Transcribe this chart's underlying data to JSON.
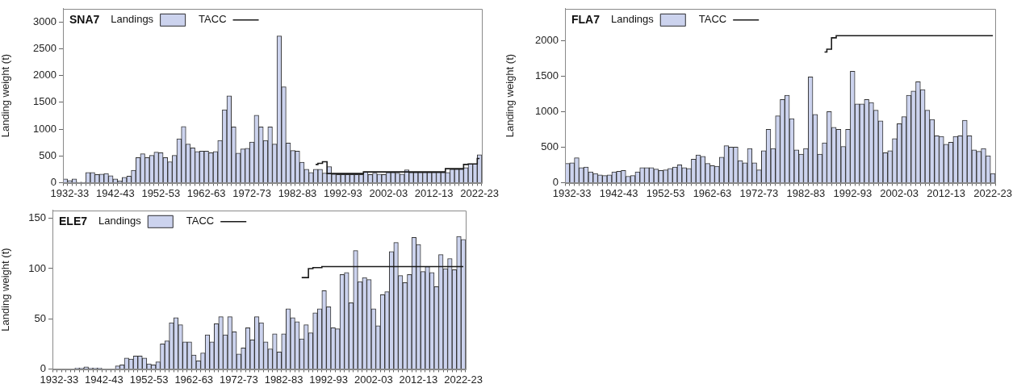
{
  "chart_data": [
    {
      "type": "bar",
      "title": "SNA7",
      "ylabel": "Landing weight (t)",
      "legend": "top left",
      "categories": [
        null,
        "1932-33",
        null,
        null,
        null,
        null,
        null,
        null,
        null,
        null,
        null,
        "1942-43",
        null,
        null,
        null,
        null,
        null,
        null,
        null,
        null,
        null,
        "1952-53",
        null,
        null,
        null,
        null,
        null,
        null,
        null,
        null,
        null,
        "1962-63",
        null,
        null,
        null,
        null,
        null,
        null,
        null,
        null,
        null,
        "1972-73",
        null,
        null,
        null,
        null,
        null,
        null,
        null,
        null,
        null,
        "1982-83",
        null,
        null,
        null,
        null,
        null,
        null,
        null,
        null,
        null,
        "1992-93",
        null,
        null,
        null,
        null,
        null,
        null,
        null,
        null,
        null,
        "2002-03",
        null,
        null,
        null,
        null,
        null,
        null,
        null,
        null,
        null,
        "2012-13",
        null,
        null,
        null,
        null,
        null,
        null,
        null,
        null,
        null,
        "2022-23"
      ],
      "ylim": [
        0,
        3250
      ],
      "yticks": [
        0,
        500,
        1000,
        1500,
        2000,
        2500,
        3000
      ],
      "series": [
        {
          "name": "Landings",
          "color": "#ccd3ee",
          "values": [
            70,
            40,
            70,
            10,
            10,
            190,
            190,
            150,
            160,
            170,
            130,
            70,
            30,
            100,
            120,
            230,
            470,
            540,
            470,
            510,
            570,
            560,
            470,
            390,
            510,
            820,
            1050,
            720,
            650,
            580,
            590,
            590,
            560,
            580,
            790,
            1360,
            1620,
            1040,
            550,
            630,
            640,
            760,
            1260,
            1040,
            790,
            1040,
            720,
            2740,
            1790,
            740,
            600,
            590,
            380,
            250,
            190,
            250,
            250,
            180,
            300,
            160,
            150,
            150,
            150,
            150,
            150,
            150,
            200,
            150,
            180,
            160,
            150,
            190,
            190,
            180,
            160,
            240,
            190,
            190,
            190,
            190,
            190,
            190,
            190,
            190,
            190,
            250,
            250,
            250,
            280,
            350,
            350,
            520
          ]
        },
        {
          "name": "TACC",
          "type": "step",
          "color": "#1a1a1a",
          "values": [
            null,
            null,
            null,
            null,
            null,
            null,
            null,
            null,
            null,
            null,
            null,
            null,
            null,
            null,
            null,
            null,
            null,
            null,
            null,
            null,
            null,
            null,
            null,
            null,
            null,
            null,
            null,
            null,
            null,
            null,
            null,
            null,
            null,
            null,
            null,
            null,
            null,
            null,
            null,
            null,
            null,
            null,
            null,
            null,
            null,
            null,
            null,
            null,
            null,
            null,
            null,
            null,
            null,
            null,
            null,
            340,
            360,
            390,
            170,
            170,
            170,
            170,
            170,
            170,
            170,
            170,
            200,
            200,
            200,
            200,
            200,
            200,
            200,
            200,
            200,
            200,
            200,
            200,
            200,
            200,
            200,
            200,
            200,
            200,
            260,
            260,
            260,
            260,
            340,
            350,
            350,
            450
          ]
        }
      ]
    },
    {
      "type": "bar",
      "title": "FLA7",
      "ylabel": "Landing weight (t)",
      "legend": "top left",
      "categories": [
        null,
        "1932-33",
        null,
        null,
        null,
        null,
        null,
        null,
        null,
        null,
        null,
        "1942-43",
        null,
        null,
        null,
        null,
        null,
        null,
        null,
        null,
        null,
        "1952-53",
        null,
        null,
        null,
        null,
        null,
        null,
        null,
        null,
        null,
        "1962-63",
        null,
        null,
        null,
        null,
        null,
        null,
        null,
        null,
        null,
        "1972-73",
        null,
        null,
        null,
        null,
        null,
        null,
        null,
        null,
        null,
        "1982-83",
        null,
        null,
        null,
        null,
        null,
        null,
        null,
        null,
        null,
        "1992-93",
        null,
        null,
        null,
        null,
        null,
        null,
        null,
        null,
        null,
        "2002-03",
        null,
        null,
        null,
        null,
        null,
        null,
        null,
        null,
        null,
        "2012-13",
        null,
        null,
        null,
        null,
        null,
        null,
        null,
        null,
        null,
        "2022-23"
      ],
      "ylim": [
        0,
        2450
      ],
      "yticks": [
        0,
        500,
        1000,
        1500,
        2000
      ],
      "series": [
        {
          "name": "Landings",
          "color": "#ccd3ee",
          "values": [
            270,
            280,
            350,
            210,
            220,
            150,
            130,
            110,
            100,
            110,
            150,
            160,
            170,
            90,
            100,
            150,
            210,
            210,
            210,
            190,
            170,
            180,
            200,
            220,
            250,
            210,
            200,
            330,
            390,
            370,
            270,
            240,
            230,
            360,
            520,
            500,
            500,
            310,
            280,
            480,
            280,
            180,
            450,
            750,
            480,
            940,
            1170,
            1230,
            900,
            460,
            400,
            480,
            1490,
            960,
            400,
            560,
            1000,
            780,
            750,
            510,
            750,
            1570,
            1110,
            1110,
            1170,
            1130,
            1020,
            870,
            420,
            450,
            620,
            830,
            930,
            1230,
            1290,
            1420,
            1310,
            1020,
            890,
            660,
            650,
            540,
            570,
            650,
            660,
            880,
            660,
            460,
            440,
            480,
            380,
            130
          ]
        },
        {
          "name": "TACC",
          "type": "step",
          "color": "#1a1a1a",
          "values": [
            null,
            null,
            null,
            null,
            null,
            null,
            null,
            null,
            null,
            null,
            null,
            null,
            null,
            null,
            null,
            null,
            null,
            null,
            null,
            null,
            null,
            null,
            null,
            null,
            null,
            null,
            null,
            null,
            null,
            null,
            null,
            null,
            null,
            null,
            null,
            null,
            null,
            null,
            null,
            null,
            null,
            null,
            null,
            null,
            null,
            null,
            null,
            null,
            null,
            null,
            null,
            null,
            null,
            null,
            null,
            1840,
            1880,
            2040,
            2070,
            2070,
            2070,
            2070,
            2070,
            2070,
            2070,
            2070,
            2070,
            2070,
            2070,
            2070,
            2070,
            2070,
            2070,
            2070,
            2070,
            2070,
            2070,
            2070,
            2070,
            2070,
            2070,
            2070,
            2070,
            2070,
            2070,
            2070,
            2070,
            2070,
            2070,
            2070,
            2070,
            2070
          ]
        }
      ]
    },
    {
      "type": "bar",
      "title": "ELE7",
      "ylabel": "Landing weight (t)",
      "legend": "top left",
      "categories": [
        null,
        "1932-33",
        null,
        null,
        null,
        null,
        null,
        null,
        null,
        null,
        null,
        "1942-43",
        null,
        null,
        null,
        null,
        null,
        null,
        null,
        null,
        null,
        "1952-53",
        null,
        null,
        null,
        null,
        null,
        null,
        null,
        null,
        null,
        "1962-63",
        null,
        null,
        null,
        null,
        null,
        null,
        null,
        null,
        null,
        "1972-73",
        null,
        null,
        null,
        null,
        null,
        null,
        null,
        null,
        null,
        "1982-83",
        null,
        null,
        null,
        null,
        null,
        null,
        null,
        null,
        null,
        "1992-93",
        null,
        null,
        null,
        null,
        null,
        null,
        null,
        null,
        null,
        "2002-03",
        null,
        null,
        null,
        null,
        null,
        null,
        null,
        null,
        null,
        "2012-13",
        null,
        null,
        null,
        null,
        null,
        null,
        null,
        null,
        null,
        "2022-23"
      ],
      "ylim": [
        0,
        158
      ],
      "yticks": [
        0,
        50,
        100,
        150
      ],
      "series": [
        {
          "name": "Landings",
          "color": "#ccd3ee",
          "values": [
            0,
            0,
            0,
            0,
            0,
            1,
            1,
            2,
            1,
            1,
            1,
            0,
            0,
            0,
            3,
            4,
            11,
            10,
            13,
            13,
            11,
            5,
            4,
            7,
            25,
            28,
            46,
            51,
            44,
            27,
            27,
            14,
            8,
            16,
            34,
            27,
            45,
            52,
            34,
            52,
            37,
            15,
            21,
            41,
            29,
            52,
            46,
            27,
            20,
            35,
            17,
            35,
            60,
            51,
            47,
            30,
            44,
            36,
            56,
            60,
            78,
            62,
            41,
            40,
            94,
            96,
            66,
            118,
            87,
            91,
            89,
            60,
            43,
            74,
            77,
            117,
            126,
            93,
            86,
            94,
            131,
            124,
            97,
            102,
            96,
            82,
            114,
            100,
            110,
            99,
            132,
            129
          ]
        },
        {
          "name": "TACC",
          "type": "step",
          "color": "#1a1a1a",
          "values": [
            null,
            null,
            null,
            null,
            null,
            null,
            null,
            null,
            null,
            null,
            null,
            null,
            null,
            null,
            null,
            null,
            null,
            null,
            null,
            null,
            null,
            null,
            null,
            null,
            null,
            null,
            null,
            null,
            null,
            null,
            null,
            null,
            null,
            null,
            null,
            null,
            null,
            null,
            null,
            null,
            null,
            null,
            null,
            null,
            null,
            null,
            null,
            null,
            null,
            null,
            null,
            null,
            null,
            null,
            null,
            91,
            91,
            100,
            101,
            101,
            102,
            102,
            102,
            102,
            102,
            102,
            102,
            102,
            102,
            102,
            102,
            102,
            102,
            102,
            102,
            102,
            102,
            102,
            102,
            102,
            102,
            102,
            102,
            102,
            102,
            102,
            102,
            102,
            102,
            102,
            102,
            102
          ]
        }
      ]
    }
  ]
}
